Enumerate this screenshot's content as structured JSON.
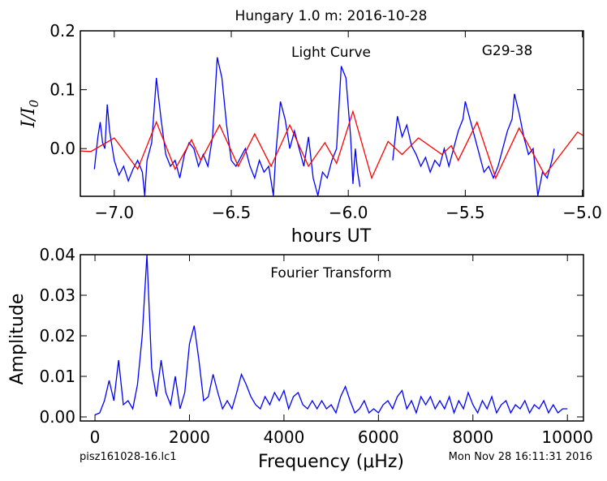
{
  "title": "Hungary 1.0 m:  2016-10-28",
  "footer": {
    "left": "pisz161028-16.lc1",
    "right": "Mon Nov 28 16:11:31 2016"
  },
  "chart_data": [
    {
      "type": "line",
      "annotations": [
        "Light Curve",
        "G29-38"
      ],
      "xlabel": "hours UT",
      "ylabel": [
        "I/I",
        "0"
      ],
      "xlim": [
        -7.145,
        -4.995
      ],
      "ylim": [
        -0.081,
        0.2
      ],
      "xticks": [
        {
          "value": -7.0,
          "label": "−7.0"
        },
        {
          "value": -6.5,
          "label": "−6.5"
        },
        {
          "value": -6.0,
          "label": "−6.0"
        },
        {
          "value": -5.5,
          "label": "−5.5"
        },
        {
          "value": -5.0,
          "label": "−5.0"
        }
      ],
      "yticks": [
        {
          "value": 0,
          "label": "0.0"
        },
        0.1,
        0.2
      ],
      "series": [
        {
          "color": "#0000ff",
          "x": [
            -7.085,
            -7.07,
            -7.06,
            -7.05,
            -7.04,
            -7.03,
            -7.02,
            -7.0,
            -6.98,
            -6.96,
            -6.94,
            -6.92,
            -6.9,
            -6.88,
            -6.87,
            -6.86,
            -6.84,
            -6.82,
            -6.8,
            -6.78,
            -6.76,
            -6.74,
            -6.72,
            -6.7,
            -6.68,
            -6.66,
            -6.64,
            -6.62,
            -6.6,
            -6.58,
            -6.56,
            -6.54,
            -6.52,
            -6.5,
            -6.48,
            -6.46,
            -6.44,
            -6.42,
            -6.4,
            -6.38,
            -6.36,
            -6.34,
            -6.32,
            -6.31,
            -6.29,
            -6.27,
            -6.25,
            -6.23,
            -6.21,
            -6.19,
            -6.17,
            -6.15,
            -6.13,
            -6.11,
            -6.09,
            -6.07,
            -6.05,
            -6.03,
            -6.01,
            -5.99,
            -5.98,
            -5.97,
            -5.96,
            -5.95,
            -5.88,
            -5.81,
            -5.79,
            -5.77,
            -5.75,
            -5.73,
            -5.71,
            -5.69,
            -5.67,
            -5.65,
            -5.63,
            -5.61,
            -5.59,
            -5.57,
            -5.55,
            -5.53,
            -5.51,
            -5.5,
            -5.48,
            -5.46,
            -5.44,
            -5.42,
            -5.4,
            -5.38,
            -5.36,
            -5.34,
            -5.32,
            -5.3,
            -5.29,
            -5.27,
            -5.25,
            -5.23,
            -5.21,
            -5.19,
            -5.17,
            -5.15,
            -5.13,
            -5.12
          ],
          "values": [
            -0.035,
            0.02,
            0.045,
            0.01,
            0.0,
            0.075,
            0.03,
            -0.02,
            -0.045,
            -0.03,
            -0.055,
            -0.035,
            -0.02,
            -0.04,
            -0.08,
            -0.02,
            0.01,
            0.12,
            0.05,
            -0.01,
            -0.03,
            -0.02,
            -0.05,
            -0.01,
            0.01,
            0.0,
            -0.03,
            -0.01,
            -0.03,
            0.02,
            0.155,
            0.12,
            0.04,
            -0.02,
            -0.03,
            -0.015,
            0.0,
            -0.03,
            -0.05,
            -0.02,
            -0.04,
            -0.03,
            -0.08,
            -0.01,
            0.08,
            0.05,
            0.0,
            0.03,
            0.0,
            -0.03,
            0.02,
            -0.05,
            -0.08,
            -0.04,
            -0.05,
            -0.02,
            0.0,
            0.14,
            0.12,
            0.02,
            -0.06,
            0.0,
            -0.04,
            -0.065,
            null,
            -0.02,
            0.055,
            0.02,
            0.04,
            0.005,
            -0.01,
            -0.03,
            -0.015,
            -0.04,
            -0.02,
            -0.03,
            0.0,
            -0.03,
            0.0,
            0.03,
            0.05,
            0.08,
            0.05,
            0.02,
            -0.01,
            -0.04,
            -0.03,
            -0.05,
            -0.03,
            0.0,
            0.03,
            0.05,
            0.093,
            0.06,
            0.02,
            -0.01,
            0.0,
            -0.08,
            -0.04,
            -0.05,
            -0.02,
            0.0
          ]
        },
        {
          "color": "#ff0000",
          "x": [
            -7.145,
            -7.1,
            -7.0,
            -6.9,
            -6.82,
            -6.74,
            -6.67,
            -6.63,
            -6.55,
            -6.47,
            -6.4,
            -6.33,
            -6.25,
            -6.17,
            -6.1,
            -6.05,
            -5.98,
            -5.9,
            -5.83,
            -5.77,
            -5.7,
            -5.6,
            -5.56,
            -5.53,
            -5.45,
            -5.37,
            -5.27,
            -5.16,
            -5.02,
            -4.995
          ],
          "values": [
            -0.004,
            -0.005,
            0.018,
            -0.035,
            0.045,
            -0.035,
            0.015,
            -0.02,
            0.04,
            -0.03,
            0.025,
            -0.03,
            0.04,
            -0.03,
            0.01,
            -0.025,
            0.063,
            -0.05,
            0.012,
            -0.01,
            0.018,
            -0.01,
            0.005,
            -0.02,
            0.045,
            -0.05,
            0.035,
            -0.045,
            0.028,
            0.022
          ]
        }
      ]
    },
    {
      "type": "line",
      "annotations": [
        "Fourier Transform"
      ],
      "xlabel": "Frequency (μHz)",
      "ylabel": [
        "Amplitude"
      ],
      "xlim": [
        -310,
        10340
      ],
      "ylim": [
        -0.001,
        0.04
      ],
      "xticks": [
        0,
        2000,
        4000,
        6000,
        8000,
        10000
      ],
      "yticks": [
        {
          "value": 0,
          "label": "0.00"
        },
        {
          "value": 0.01,
          "label": "0.01"
        },
        {
          "value": 0.02,
          "label": "0.02"
        },
        {
          "value": 0.03,
          "label": "0.03"
        },
        {
          "value": 0.04,
          "label": "0.04"
        }
      ],
      "series": [
        {
          "color": "#0000ff",
          "x": [
            0,
            100,
            200,
            300,
            400,
            500,
            600,
            700,
            800,
            900,
            1000,
            1100,
            1200,
            1300,
            1400,
            1500,
            1600,
            1700,
            1800,
            1900,
            2000,
            2100,
            2200,
            2300,
            2400,
            2500,
            2600,
            2700,
            2800,
            2900,
            3000,
            3100,
            3200,
            3300,
            3400,
            3500,
            3600,
            3700,
            3800,
            3900,
            4000,
            4100,
            4200,
            4300,
            4400,
            4500,
            4600,
            4700,
            4800,
            4900,
            5000,
            5100,
            5200,
            5300,
            5400,
            5500,
            5600,
            5700,
            5800,
            5900,
            6000,
            6100,
            6200,
            6300,
            6400,
            6500,
            6600,
            6700,
            6800,
            6900,
            7000,
            7100,
            7200,
            7300,
            7400,
            7500,
            7600,
            7700,
            7800,
            7900,
            8000,
            8100,
            8200,
            8300,
            8400,
            8500,
            8600,
            8700,
            8800,
            8900,
            9000,
            9100,
            9200,
            9300,
            9400,
            9500,
            9600,
            9700,
            9800,
            9900,
            10000
          ],
          "values": [
            0.0005,
            0.001,
            0.004,
            0.009,
            0.004,
            0.014,
            0.003,
            0.004,
            0.002,
            0.008,
            0.02,
            0.04,
            0.012,
            0.005,
            0.014,
            0.006,
            0.003,
            0.01,
            0.002,
            0.006,
            0.018,
            0.0225,
            0.014,
            0.004,
            0.005,
            0.0105,
            0.006,
            0.002,
            0.004,
            0.002,
            0.006,
            0.0105,
            0.008,
            0.005,
            0.003,
            0.002,
            0.005,
            0.003,
            0.006,
            0.004,
            0.0065,
            0.002,
            0.005,
            0.006,
            0.003,
            0.002,
            0.004,
            0.002,
            0.004,
            0.002,
            0.003,
            0.001,
            0.005,
            0.0075,
            0.004,
            0.001,
            0.002,
            0.004,
            0.001,
            0.002,
            0.001,
            0.003,
            0.004,
            0.002,
            0.005,
            0.0065,
            0.002,
            0.004,
            0.001,
            0.005,
            0.003,
            0.005,
            0.002,
            0.004,
            0.002,
            0.005,
            0.001,
            0.004,
            0.002,
            0.006,
            0.003,
            0.001,
            0.004,
            0.002,
            0.005,
            0.001,
            0.003,
            0.004,
            0.001,
            0.003,
            0.002,
            0.004,
            0.001,
            0.003,
            0.002,
            0.004,
            0.001,
            0.003,
            0.001,
            0.002,
            0.002
          ]
        }
      ]
    }
  ]
}
